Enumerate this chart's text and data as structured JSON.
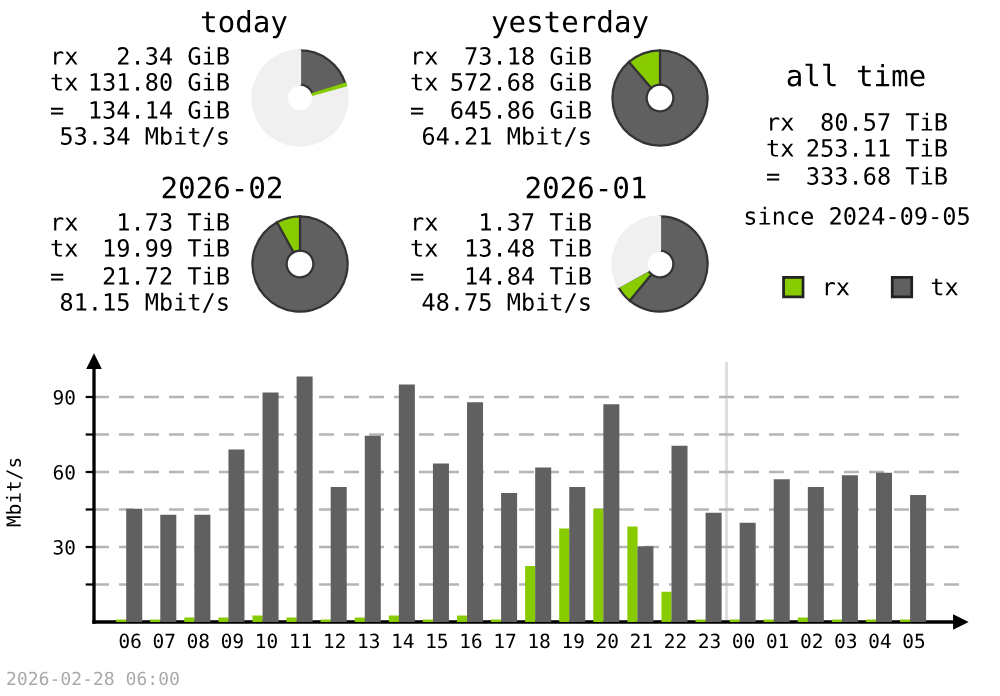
{
  "chart_data": [
    {
      "type": "donut",
      "title": "today",
      "annotations": [
        "rx 2.34 GiB",
        "tx 131.80 GiB",
        "= 134.14 GiB",
        "53.34 Mbit/s"
      ],
      "categories": [
        null,
        null,
        null
      ],
      "values": [
        20.1,
        0.7,
        79.2
      ],
      "colors": [
        "#606060",
        "#88cc00",
        "#f0f0f0"
      ]
    },
    {
      "type": "donut",
      "title": "yesterday",
      "annotations": [
        "rx 73.18 GiB",
        "tx 572.68 GiB",
        "= 645.86 GiB",
        "64.21 Mbit/s"
      ],
      "categories": [
        null,
        null
      ],
      "values": [
        88.7,
        11.3
      ],
      "colors": [
        "#606060",
        "#88cc00"
      ]
    },
    {
      "type": "donut",
      "title": "2026-02",
      "annotations": [
        "rx 1.73 TiB",
        "tx 19.99 TiB",
        "= 21.72 TiB",
        "81.15 Mbit/s"
      ],
      "categories": [
        null,
        null
      ],
      "values": [
        92.0,
        8.0
      ],
      "colors": [
        "#606060",
        "#88cc00"
      ]
    },
    {
      "type": "donut",
      "title": "2026-01",
      "annotations": [
        "rx 1.37 TiB",
        "tx 13.48 TiB",
        "= 14.84 TiB",
        "48.75 Mbit/s"
      ],
      "categories": [
        null,
        null,
        null
      ],
      "values": [
        61,
        6,
        33
      ],
      "colors": [
        "#606060",
        "#88cc00",
        "#f0f0f0"
      ]
    },
    {
      "type": "other",
      "title": "all time",
      "annotations": [
        "rx 80.57 TiB",
        "tx 253.11 TiB",
        "= 333.68 TiB",
        "since 2024-09-05"
      ]
    },
    {
      "type": "bar",
      "ylabel": "Mbit/s",
      "annotations": [
        "2026-02-28 06:00"
      ],
      "categories": [
        "06",
        "07",
        "08",
        "09",
        "10",
        "11",
        "12",
        "13",
        "14",
        "15",
        "16",
        "17",
        "18",
        "19",
        "20",
        "21",
        "22",
        "23",
        "00",
        "01",
        "02",
        "03",
        "04",
        "05"
      ],
      "series": [
        {
          "name": "rx",
          "color": "#88cc00",
          "values": [
            1,
            1,
            1.8,
            1.8,
            2.6,
            1.8,
            1,
            1.8,
            2.6,
            1,
            2.6,
            1,
            22.4,
            37.4,
            45.3,
            38.2,
            12.1,
            1,
            1,
            1,
            1.8,
            1,
            1,
            1
          ]
        },
        {
          "name": "tx",
          "color": "#606060",
          "values": [
            45.3,
            42.9,
            42.9,
            69,
            91.8,
            98.2,
            54,
            74.5,
            95,
            63.4,
            87.9,
            51.6,
            61.8,
            54,
            87.1,
            30.3,
            70.5,
            43.7,
            39.7,
            57.1,
            54,
            58.7,
            59.7,
            50.8
          ]
        }
      ],
      "ylim": [
        0,
        104
      ],
      "yticks": [
        {
          "value": 15,
          "label": null
        },
        30,
        {
          "value": 45,
          "label": null
        },
        60,
        {
          "value": 75,
          "label": null
        },
        90
      ],
      "grid": "y",
      "legend": "top right",
      "ref_lines": [
        {
          "axis": "x",
          "value": "00",
          "color": "#dddddd"
        }
      ]
    }
  ]
}
